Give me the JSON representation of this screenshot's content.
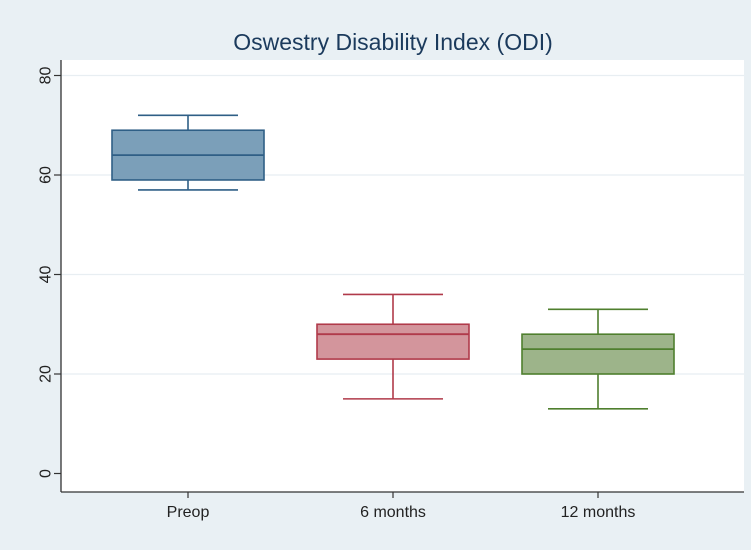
{
  "chart_data": {
    "type": "box",
    "title": "Oswestry Disability Index (ODI)",
    "xlabel": "",
    "ylabel": "",
    "ylim": [
      0,
      80
    ],
    "yticks": [
      0,
      20,
      40,
      60,
      80
    ],
    "grid": true,
    "categories": [
      "Preop",
      "6 months",
      "12 months"
    ],
    "series": [
      {
        "name": "Preop",
        "min": 57,
        "q1": 59,
        "median": 64,
        "q3": 69,
        "max": 72,
        "fill": "#7b9fb9",
        "stroke": "#2f5f86"
      },
      {
        "name": "6 months",
        "min": 15,
        "q1": 23,
        "median": 28,
        "q3": 30,
        "max": 36,
        "fill": "#d3959c",
        "stroke": "#b03a4a"
      },
      {
        "name": "12 months",
        "min": 13,
        "q1": 20,
        "median": 25,
        "q3": 28,
        "max": 33,
        "fill": "#9db48a",
        "stroke": "#4f7f2e"
      }
    ]
  },
  "colors": {
    "outer_background": "#e9f0f4",
    "plot_background": "#ffffff",
    "gridline": "#e8eef2",
    "axis": "#333333",
    "title": "#1b3a5c"
  }
}
